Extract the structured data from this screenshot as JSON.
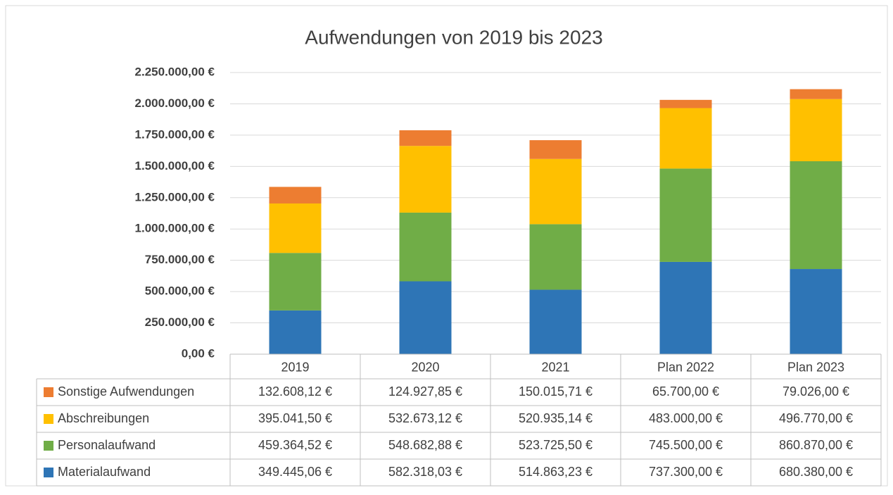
{
  "chart_data": {
    "type": "stacked_bar",
    "title": "Aufwendungen von 2019 bis 2023",
    "categories": [
      "2019",
      "2020",
      "2021",
      "Plan 2022",
      "Plan 2023"
    ],
    "series": [
      {
        "name": "Materialaufwand",
        "color": "#2e75b6",
        "values": [
          349445.06,
          582318.03,
          514863.23,
          737300.0,
          680380.0
        ],
        "value_labels": [
          "349.445,06 €",
          "582.318,03 €",
          "514.863,23 €",
          "737.300,00 €",
          "680.380,00 €"
        ]
      },
      {
        "name": "Personalaufwand",
        "color": "#70ad47",
        "values": [
          459364.52,
          548682.88,
          523725.5,
          745500.0,
          860870.0
        ],
        "value_labels": [
          "459.364,52 €",
          "548.682,88 €",
          "523.725,50 €",
          "745.500,00 €",
          "860.870,00 €"
        ]
      },
      {
        "name": "Abschreibungen",
        "color": "#ffc000",
        "values": [
          395041.5,
          532673.12,
          520935.14,
          483000.0,
          496770.0
        ],
        "value_labels": [
          "395.041,50 €",
          "532.673,12 €",
          "520.935,14 €",
          "483.000,00 €",
          "496.770,00 €"
        ]
      },
      {
        "name": "Sonstige Aufwendungen",
        "color": "#ed7d31",
        "values": [
          132608.12,
          124927.85,
          150015.71,
          65700.0,
          79026.0
        ],
        "value_labels": [
          "132.608,12 €",
          "124.927,85 €",
          "150.015,71 €",
          "65.700,00 €",
          "79.026,00 €"
        ]
      }
    ],
    "ylim": [
      0,
      2250000
    ],
    "yticks": [
      {
        "value": 0,
        "label": "0,00 €"
      },
      {
        "value": 250000,
        "label": "250.000,00 €"
      },
      {
        "value": 500000,
        "label": "500.000,00 €"
      },
      {
        "value": 750000,
        "label": "750.000,00 €"
      },
      {
        "value": 1000000,
        "label": "1.000.000,00 €"
      },
      {
        "value": 1250000,
        "label": "1.250.000,00 €"
      },
      {
        "value": 1500000,
        "label": "1.500.000,00 €"
      },
      {
        "value": 1750000,
        "label": "1.750.000,00 €"
      },
      {
        "value": 2000000,
        "label": "2.000.000,00 €"
      },
      {
        "value": 2250000,
        "label": "2.250.000,00 €"
      }
    ],
    "grid": true
  }
}
